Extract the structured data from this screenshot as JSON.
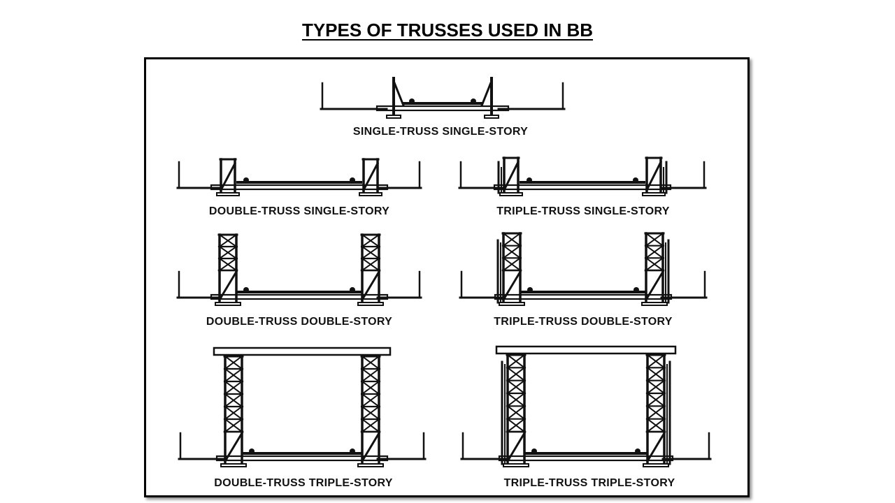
{
  "slide": {
    "title": "TYPES OF TRUSSES USED IN BB"
  },
  "diagram": {
    "colors": {
      "ink": "#111111",
      "frame": "#000000",
      "background": "#ffffff"
    },
    "panels": [
      {
        "id": "sts",
        "caption": "SINGLE-TRUSS SINGLE-STORY",
        "trusses": 1,
        "stories": 1
      },
      {
        "id": "dts",
        "caption": "DOUBLE-TRUSS SINGLE-STORY",
        "trusses": 2,
        "stories": 1
      },
      {
        "id": "tts",
        "caption": "TRIPLE-TRUSS SINGLE-STORY",
        "trusses": 3,
        "stories": 1
      },
      {
        "id": "dtd",
        "caption": "DOUBLE-TRUSS DOUBLE-STORY",
        "trusses": 2,
        "stories": 2
      },
      {
        "id": "ttd",
        "caption": "TRIPLE-TRUSS DOUBLE-STORY",
        "trusses": 3,
        "stories": 2
      },
      {
        "id": "dtt",
        "caption": "DOUBLE-TRUSS TRIPLE-STORY",
        "trusses": 2,
        "stories": 3
      },
      {
        "id": "ttt",
        "caption": "TRIPLE-TRUSS TRIPLE-STORY",
        "trusses": 3,
        "stories": 3
      }
    ]
  }
}
